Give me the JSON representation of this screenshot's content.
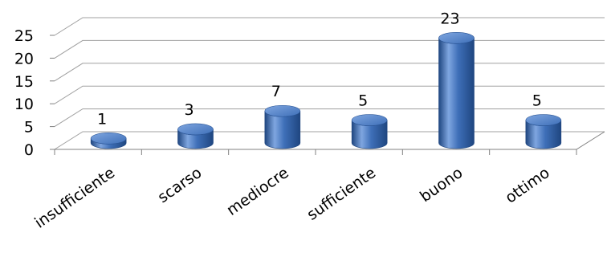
{
  "chart_data": {
    "type": "bar",
    "style": "3d-cylinder",
    "categories": [
      "insufficiente",
      "scarso",
      "mediocre",
      "sufficiente",
      "buono",
      "ottimo"
    ],
    "values": [
      1,
      3,
      7,
      5,
      23,
      5
    ],
    "data_labels": [
      "1",
      "3",
      "7",
      "5",
      "23",
      "5"
    ],
    "title": "",
    "xlabel": "",
    "ylabel": "",
    "ylim": [
      0,
      25
    ],
    "y_ticks": [
      "0",
      "5",
      "10",
      "15",
      "20",
      "25"
    ],
    "grid": true,
    "legend": "none",
    "colors": {
      "bar_body": "#3e6fb8",
      "bar_highlight": "#7fa6e0",
      "bar_shadow": "#1f4680",
      "bar_top": "#5b88cf",
      "grid": "#a0a0a0",
      "axis": "#808080"
    }
  }
}
